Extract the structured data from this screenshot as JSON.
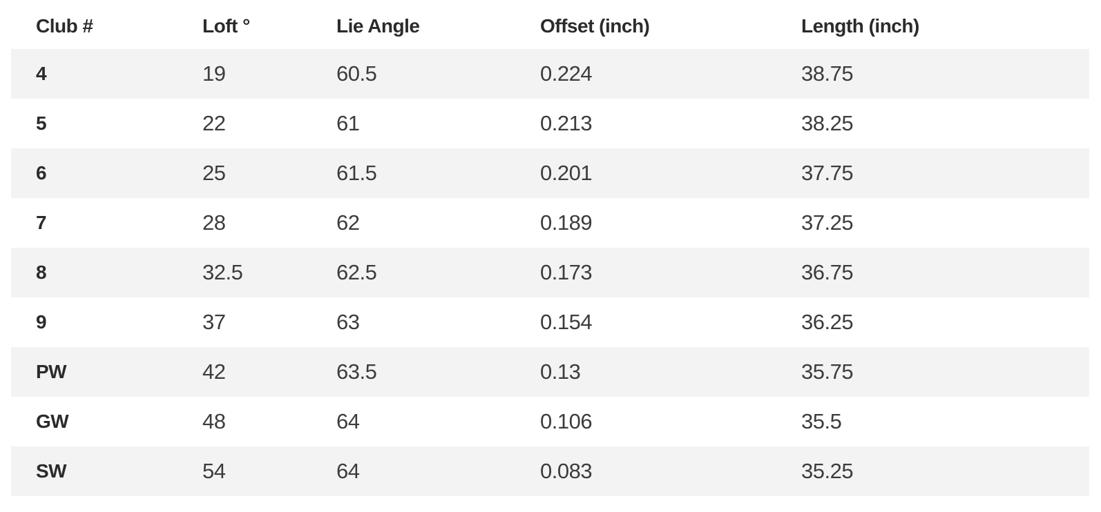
{
  "chart_data": {
    "type": "table",
    "columns": [
      "Club #",
      "Loft °",
      "Lie Angle",
      "Offset (inch)",
      "Length (inch)"
    ],
    "rows": [
      [
        "4",
        "19",
        "60.5",
        "0.224",
        "38.75"
      ],
      [
        "5",
        "22",
        "61",
        "0.213",
        "38.25"
      ],
      [
        "6",
        "25",
        "61.5",
        "0.201",
        "37.75"
      ],
      [
        "7",
        "28",
        "62",
        "0.189",
        "37.25"
      ],
      [
        "8",
        "32.5",
        "62.5",
        "0.173",
        "36.75"
      ],
      [
        "9",
        "37",
        "63",
        "0.154",
        "36.25"
      ],
      [
        "PW",
        "42",
        "63.5",
        "0.13",
        "35.75"
      ],
      [
        "GW",
        "48",
        "64",
        "0.106",
        "35.5"
      ],
      [
        "SW",
        "54",
        "64",
        "0.083",
        "35.25"
      ]
    ],
    "layout": {
      "striped": true,
      "stripe_pattern": "odd-rows-gray",
      "grid": false,
      "header_position": "top"
    }
  },
  "style": {
    "stripe_background": "#f3f3f3",
    "row_background": "#ffffff",
    "header_text_color": "#2b2b2b",
    "body_text_color": "#3c3c3c"
  }
}
